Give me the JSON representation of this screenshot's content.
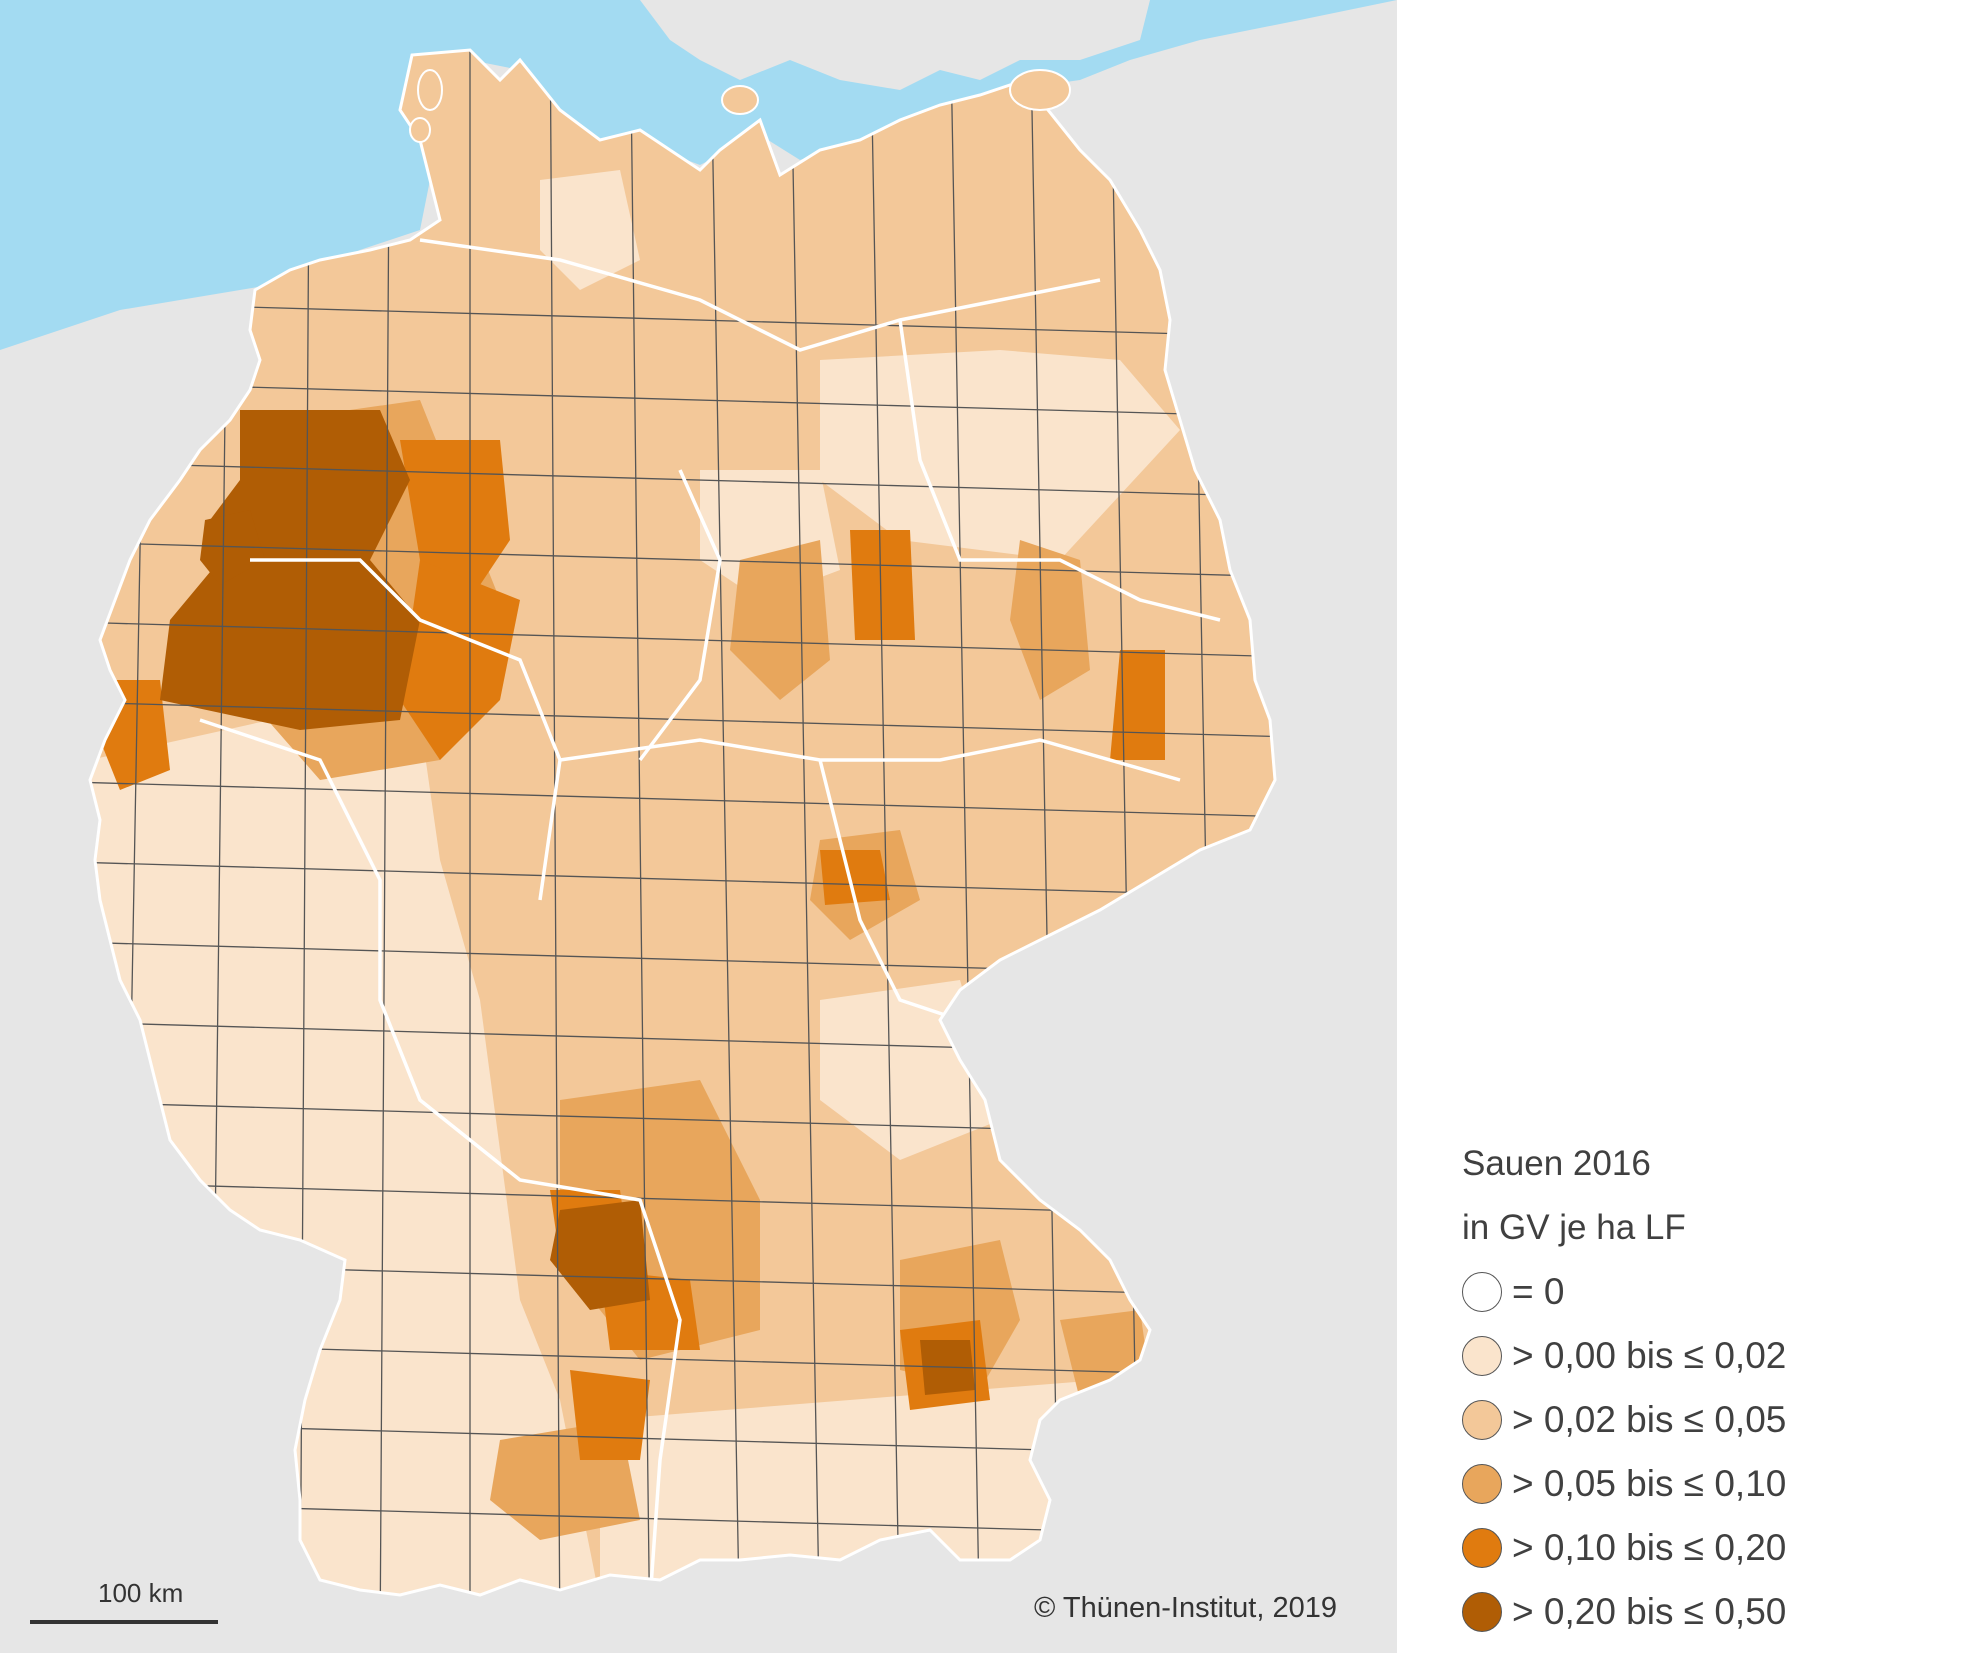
{
  "legend": {
    "title_line1": "Sauen 2016",
    "title_line2": "in GV je ha LF",
    "classes": [
      {
        "label": "= 0",
        "color": "#ffffff"
      },
      {
        "label": "> 0,00 bis ≤ 0,02",
        "color": "#fae4cc"
      },
      {
        "label": "> 0,02 bis ≤ 0,05",
        "color": "#f3c899"
      },
      {
        "label": "> 0,05 bis ≤ 0,10",
        "color": "#e8a65c"
      },
      {
        "label": "> 0,10 bis ≤ 0,20",
        "color": "#e07b0f"
      },
      {
        "label": "> 0,20 bis ≤ 0,50",
        "color": "#b05d05"
      }
    ]
  },
  "scalebar": {
    "label": "100 km"
  },
  "copyright": "© Thünen-Institut, 2019",
  "colors": {
    "sea": "#a3dbf2",
    "neighbor_land": "#e6e6e6",
    "district_border": "#555555",
    "state_border": "#ffffff"
  }
}
